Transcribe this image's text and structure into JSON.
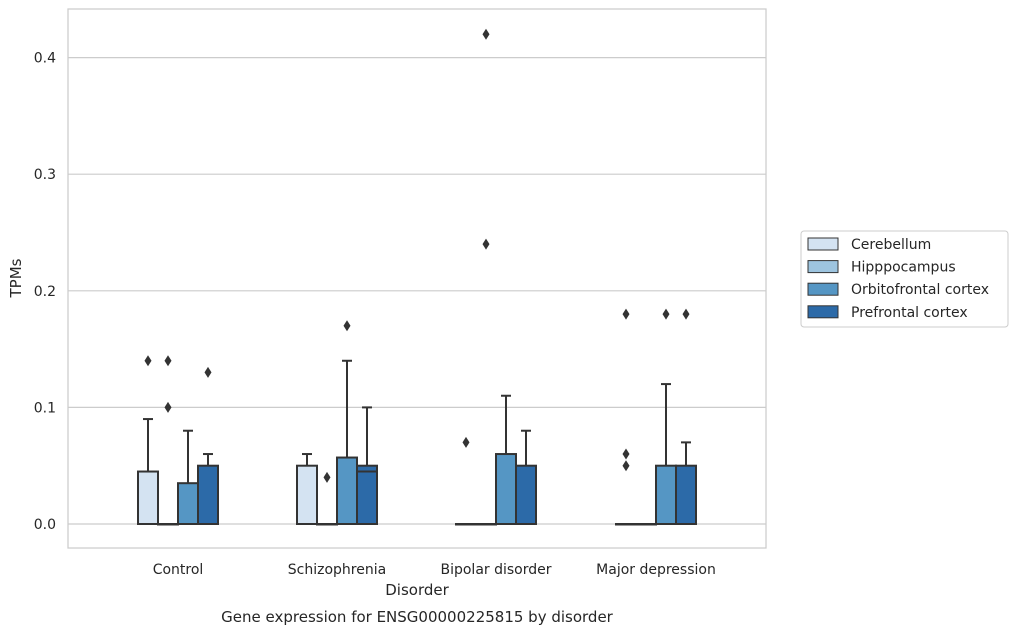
{
  "chart_data": {
    "type": "box",
    "categories": [
      "Control",
      "Schizophrenia",
      "Bipolar disorder",
      "Major depression"
    ],
    "xlabel": "Disorder",
    "ylabel": "TPMs",
    "caption": "Gene expression for ENSG00000225815 by disorder",
    "ylim": [
      -0.02,
      0.44
    ],
    "yticks": [
      0.0,
      0.1,
      0.2,
      0.3,
      0.4
    ],
    "ytick_labels": [
      "0.0",
      "0.1",
      "0.2",
      "0.3",
      "0.4"
    ],
    "grid": "horizontal",
    "legend_position": "right",
    "series": [
      {
        "name": "Cerebellum",
        "color": "#d4e3f2",
        "boxes": [
          {
            "q1": 0.0,
            "median": 0.0,
            "q3": 0.045,
            "whisker_low": 0.0,
            "whisker_high": 0.09,
            "outliers": [
              0.14
            ]
          },
          {
            "q1": 0.0,
            "median": 0.0,
            "q3": 0.05,
            "whisker_low": 0.0,
            "whisker_high": 0.06,
            "outliers": []
          },
          {
            "q1": 0.0,
            "median": 0.0,
            "q3": 0.0,
            "whisker_low": 0.0,
            "whisker_high": 0.0,
            "outliers": [
              0.07
            ]
          },
          {
            "q1": 0.0,
            "median": 0.0,
            "q3": 0.0,
            "whisker_low": 0.0,
            "whisker_high": 0.0,
            "outliers": [
              0.05,
              0.06,
              0.18
            ]
          }
        ]
      },
      {
        "name": "Hipppocampus",
        "color": "#9dc4df",
        "boxes": [
          {
            "q1": 0.0,
            "median": 0.0,
            "q3": 0.0,
            "whisker_low": 0.0,
            "whisker_high": 0.0,
            "outliers": [
              0.1,
              0.14
            ]
          },
          {
            "q1": 0.0,
            "median": 0.0,
            "q3": 0.0,
            "whisker_low": 0.0,
            "whisker_high": 0.0,
            "outliers": [
              0.04
            ]
          },
          {
            "q1": 0.0,
            "median": 0.0,
            "q3": 0.0,
            "whisker_low": 0.0,
            "whisker_high": 0.0,
            "outliers": [
              0.24,
              0.42
            ]
          },
          {
            "q1": 0.0,
            "median": 0.0,
            "q3": 0.0,
            "whisker_low": 0.0,
            "whisker_high": 0.0,
            "outliers": []
          }
        ]
      },
      {
        "name": "Orbitofrontal cortex",
        "color": "#5596c4",
        "boxes": [
          {
            "q1": 0.0,
            "median": 0.0,
            "q3": 0.035,
            "whisker_low": 0.0,
            "whisker_high": 0.08,
            "outliers": []
          },
          {
            "q1": 0.0,
            "median": 0.0,
            "q3": 0.057,
            "whisker_low": 0.0,
            "whisker_high": 0.14,
            "outliers": [
              0.17
            ]
          },
          {
            "q1": 0.0,
            "median": 0.0,
            "q3": 0.06,
            "whisker_low": 0.0,
            "whisker_high": 0.11,
            "outliers": []
          },
          {
            "q1": 0.0,
            "median": 0.0,
            "q3": 0.05,
            "whisker_low": 0.0,
            "whisker_high": 0.12,
            "outliers": [
              0.18
            ]
          }
        ]
      },
      {
        "name": "Prefrontal cortex",
        "color": "#2c6aa8",
        "boxes": [
          {
            "q1": 0.0,
            "median": 0.0,
            "q3": 0.05,
            "whisker_low": 0.0,
            "whisker_high": 0.06,
            "outliers": [
              0.13
            ]
          },
          {
            "q1": 0.0,
            "median": 0.045,
            "q3": 0.05,
            "whisker_low": 0.0,
            "whisker_high": 0.1,
            "outliers": []
          },
          {
            "q1": 0.0,
            "median": 0.0,
            "q3": 0.05,
            "whisker_low": 0.0,
            "whisker_high": 0.08,
            "outliers": []
          },
          {
            "q1": 0.0,
            "median": 0.0,
            "q3": 0.05,
            "whisker_low": 0.0,
            "whisker_high": 0.07,
            "outliers": [
              0.18
            ]
          }
        ]
      }
    ]
  }
}
